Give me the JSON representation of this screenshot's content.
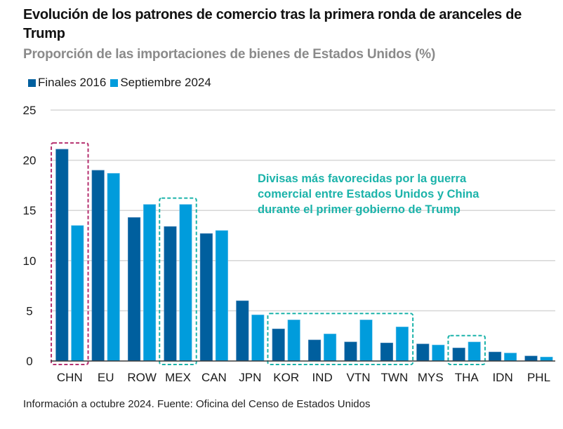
{
  "header": {
    "title": "Evolución de los patrones de comercio tras la primera ronda de aranceles de Trump",
    "subtitle": "Proporción de las importaciones de bienes de Estados Unidos (%)"
  },
  "legend": [
    {
      "label": "Finales 2016",
      "color": "#005f9e"
    },
    {
      "label": "Septiembre 2024",
      "color": "#009cdc"
    }
  ],
  "annotation": {
    "lines": [
      "Divisas más favorecidas por la guerra",
      "comercial entre Estados Unidos y China",
      "durante el primer gobierno de Trump"
    ],
    "color": "#1bb3aa"
  },
  "footer": "Información a octubre 2024. Fuente: Oficina del Censo de Estados Unidos",
  "chart_data": {
    "type": "bar",
    "title": "Evolución de los patrones de comercio tras la primera ronda de aranceles de Trump",
    "subtitle": "Proporción de las importaciones de bienes de Estados Unidos (%)",
    "xlabel": "",
    "ylabel": "",
    "ylim": [
      0,
      25
    ],
    "yticks": [
      0,
      5,
      10,
      15,
      20,
      25
    ],
    "grid": true,
    "legend_position": "top-left",
    "categories": [
      "CHN",
      "EU",
      "ROW",
      "MEX",
      "CAN",
      "JPN",
      "KOR",
      "IND",
      "VTN",
      "TWN",
      "MYS",
      "THA",
      "IDN",
      "PHL"
    ],
    "series": [
      {
        "name": "Finales 2016",
        "color": "#005f9e",
        "values": [
          21.1,
          19.0,
          14.3,
          13.4,
          12.7,
          6.0,
          3.2,
          2.1,
          1.9,
          1.8,
          1.7,
          1.3,
          0.9,
          0.5
        ]
      },
      {
        "name": "Septiembre 2024",
        "color": "#009cdc",
        "values": [
          13.5,
          18.7,
          15.6,
          15.6,
          13.0,
          4.6,
          4.1,
          2.7,
          4.1,
          3.4,
          1.6,
          1.9,
          0.8,
          0.4
        ]
      }
    ],
    "highlights": [
      {
        "categories": [
          "CHN"
        ],
        "style": "dashed",
        "color": "#b5306f"
      },
      {
        "categories": [
          "MEX"
        ],
        "style": "dashed",
        "color": "#1bb3aa"
      },
      {
        "categories": [
          "KOR",
          "IND",
          "VTN",
          "TWN"
        ],
        "style": "dashed",
        "color": "#1bb3aa"
      },
      {
        "categories": [
          "THA"
        ],
        "style": "dashed",
        "color": "#1bb3aa"
      }
    ],
    "annotation": "Divisas más favorecidas por la guerra comercial entre Estados Unidos y China durante el primer gobierno de Trump"
  }
}
